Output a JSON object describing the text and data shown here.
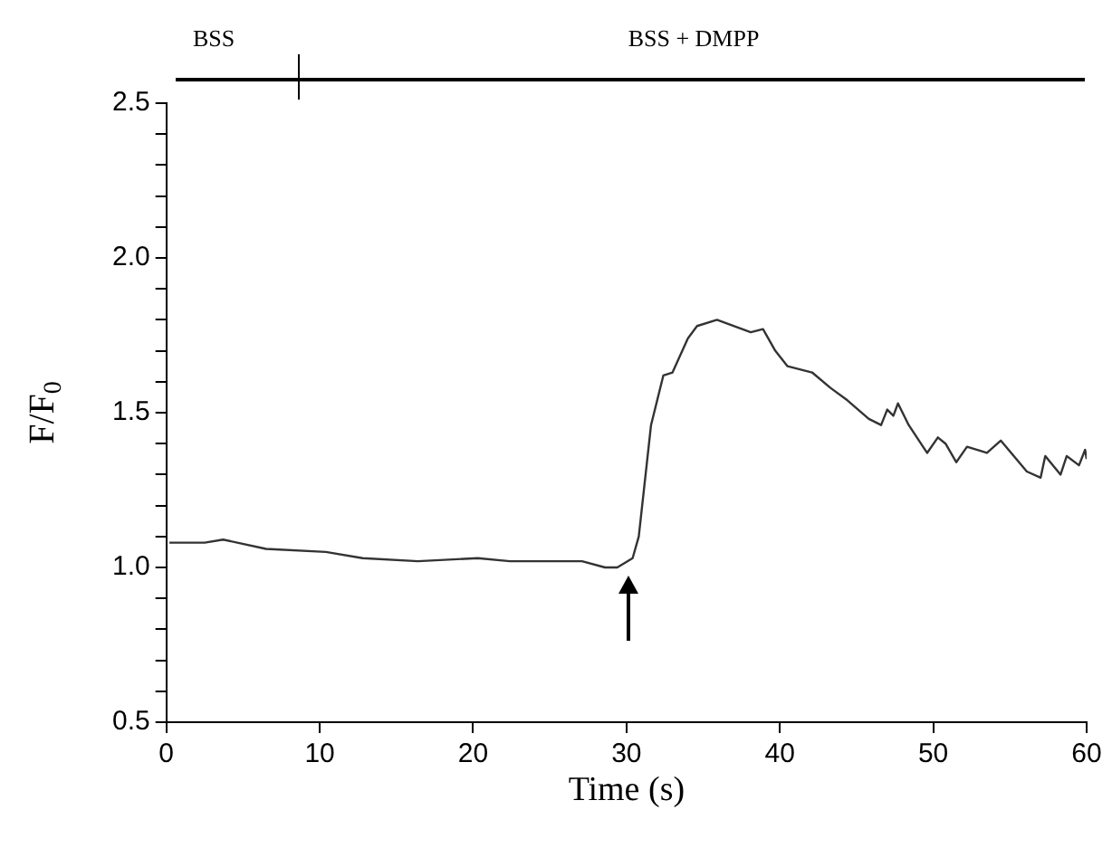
{
  "chart_data": {
    "type": "line",
    "xlabel": "Time (s)",
    "ylabel": "F/F$_{0}$",
    "x": [
      0.2,
      2.5,
      3.7,
      6.5,
      10.4,
      12.8,
      16.4,
      20.3,
      22.4,
      24.3,
      27.1,
      28.6,
      29.4,
      30.4,
      30.8,
      31.6,
      32.4,
      33.0,
      34.0,
      34.6,
      35.9,
      38.1,
      38.9,
      39.7,
      40.5,
      42.1,
      43.3,
      44.4,
      45.8,
      46.6,
      47.0,
      47.4,
      47.7,
      48.4,
      49.6,
      50.3,
      50.8,
      51.5,
      52.2,
      53.5,
      54.4,
      56.1,
      57.0,
      57.3,
      58.3,
      58.7,
      59.5,
      59.9,
      60
    ],
    "series": [
      {
        "color": "#333333",
        "values": [
          1.08,
          1.08,
          1.09,
          1.06,
          1.05,
          1.03,
          1.02,
          1.03,
          1.02,
          1.02,
          1.02,
          1.0,
          1.0,
          1.03,
          1.1,
          1.46,
          1.62,
          1.63,
          1.74,
          1.78,
          1.8,
          1.76,
          1.77,
          1.7,
          1.65,
          1.63,
          1.58,
          1.54,
          1.48,
          1.46,
          1.51,
          1.49,
          1.53,
          1.46,
          1.37,
          1.42,
          1.4,
          1.34,
          1.39,
          1.37,
          1.41,
          1.31,
          1.29,
          1.36,
          1.3,
          1.36,
          1.33,
          1.38,
          1.35
        ]
      }
    ],
    "xlim": [
      0,
      60
    ],
    "xticks": [
      0,
      10,
      20,
      30,
      40,
      50,
      60
    ],
    "ylim": [
      0.5,
      2.5
    ],
    "yticks": [
      {
        "value": 0.5,
        "label": "0.5"
      },
      {
        "value": 0.6,
        "label": null
      },
      {
        "value": 0.7,
        "label": null
      },
      {
        "value": 0.8,
        "label": null
      },
      {
        "value": 0.9,
        "label": null
      },
      {
        "value": 1,
        "label": "1.0"
      },
      {
        "value": 1.1,
        "label": null
      },
      {
        "value": 1.2,
        "label": null
      },
      {
        "value": 1.3,
        "label": null
      },
      {
        "value": 1.4,
        "label": null
      },
      {
        "value": 1.5,
        "label": "1.5"
      },
      {
        "value": 1.6,
        "label": null
      },
      {
        "value": 1.7,
        "label": null
      },
      {
        "value": 1.8,
        "label": null
      },
      {
        "value": 1.9,
        "label": null
      },
      {
        "value": 2,
        "label": "2.0"
      },
      {
        "value": 2.1,
        "label": null
      },
      {
        "value": 2.2,
        "label": null
      },
      {
        "value": 2.3,
        "label": null
      },
      {
        "value": 2.4,
        "label": null
      },
      {
        "value": 2.5,
        "label": "2.5"
      }
    ],
    "annotations": [
      "BSS",
      "BSS + DMPP"
    ],
    "grid": false,
    "legend": false,
    "marker": "none",
    "line_style": "solid"
  }
}
